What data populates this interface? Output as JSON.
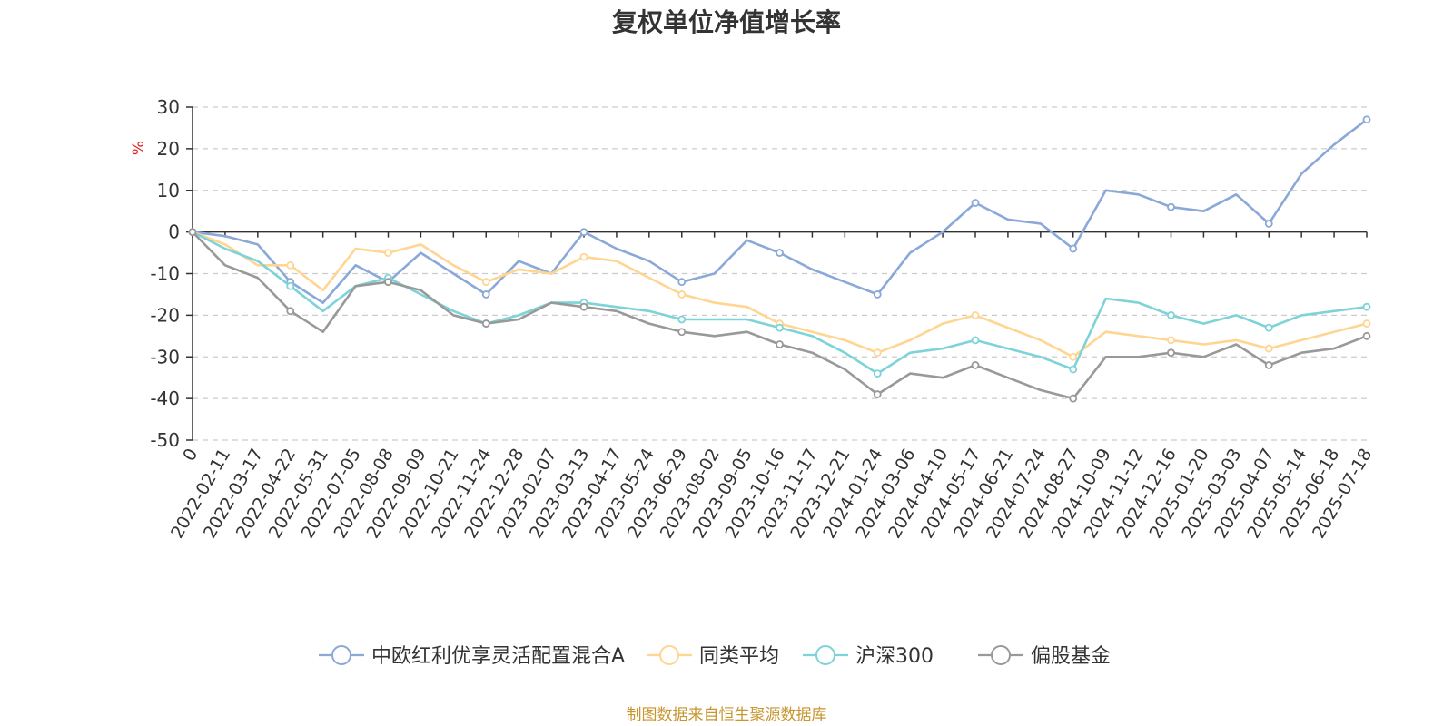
{
  "chart_data": {
    "type": "line",
    "title": "复权单位净值增长率",
    "ylabel": "%",
    "ylim": [
      -50,
      30
    ],
    "yticks": [
      "30",
      "20",
      "10",
      "0",
      "-10",
      "-20",
      "-30",
      "-40",
      "-50"
    ],
    "ytick_values": [
      30,
      20,
      10,
      0,
      -10,
      -20,
      -30,
      -40,
      -50
    ],
    "x": [
      "0",
      "2022-02-11",
      "2022-03-17",
      "2022-04-22",
      "2022-05-31",
      "2022-07-05",
      "2022-08-08",
      "2022-09-09",
      "2022-10-21",
      "2022-11-24",
      "2022-12-28",
      "2023-02-07",
      "2023-03-13",
      "2023-04-17",
      "2023-05-24",
      "2023-06-29",
      "2023-08-02",
      "2023-09-05",
      "2023-10-16",
      "2023-11-17",
      "2023-12-21",
      "2024-01-24",
      "2024-03-06",
      "2024-04-10",
      "2024-05-17",
      "2024-06-21",
      "2024-07-24",
      "2024-08-27",
      "2024-10-09",
      "2024-11-12",
      "2024-12-16",
      "2025-01-20",
      "2025-03-03",
      "2025-04-07",
      "2025-05-14",
      "2025-06-18",
      "2025-07-18"
    ],
    "series": [
      {
        "name": "中欧红利优享灵活配置混合A",
        "color": "#8aa8d8",
        "values": [
          0,
          -1,
          -3,
          -12,
          -17,
          -8,
          -12,
          -5,
          -10,
          -15,
          -7,
          -10,
          0,
          -4,
          -7,
          -12,
          -10,
          -2,
          -5,
          -9,
          -12,
          -15,
          -5,
          0,
          7,
          3,
          2,
          -4,
          10,
          9,
          6,
          5,
          9,
          2,
          14,
          21,
          27
        ]
      },
      {
        "name": "同类平均",
        "color": "#ffd591",
        "values": [
          0,
          -3,
          -8,
          -8,
          -14,
          -4,
          -5,
          -3,
          -8,
          -12,
          -9,
          -10,
          -6,
          -7,
          -11,
          -15,
          -17,
          -18,
          -22,
          -24,
          -26,
          -29,
          -26,
          -22,
          -20,
          -23,
          -26,
          -30,
          -24,
          -25,
          -26,
          -27,
          -26,
          -28,
          -26,
          -24,
          -22
        ]
      },
      {
        "name": "沪深300",
        "color": "#7dd3d8",
        "values": [
          0,
          -4,
          -7,
          -13,
          -19,
          -13,
          -11,
          -15,
          -19,
          -22,
          -20,
          -17,
          -17,
          -18,
          -19,
          -21,
          -21,
          -21,
          -23,
          -25,
          -29,
          -34,
          -29,
          -28,
          -26,
          -28,
          -30,
          -33,
          -16,
          -17,
          -20,
          -22,
          -20,
          -23,
          -20,
          -19,
          -18
        ]
      },
      {
        "name": "偏股基金",
        "color": "#999999",
        "values": [
          0,
          -8,
          -11,
          -19,
          -24,
          -13,
          -12,
          -14,
          -20,
          -22,
          -21,
          -17,
          -18,
          -19,
          -22,
          -24,
          -25,
          -24,
          -27,
          -29,
          -33,
          -39,
          -34,
          -35,
          -32,
          -35,
          -38,
          -40,
          -30,
          -30,
          -29,
          -30,
          -27,
          -32,
          -29,
          -28,
          -25
        ]
      }
    ]
  },
  "legend": {
    "position": "bottom"
  },
  "source_note": "制图数据来自恒生聚源数据库",
  "colors": {
    "source": "#c8962e",
    "unit": "#e02020",
    "grid": "#cccccc",
    "axis": "#333333"
  }
}
